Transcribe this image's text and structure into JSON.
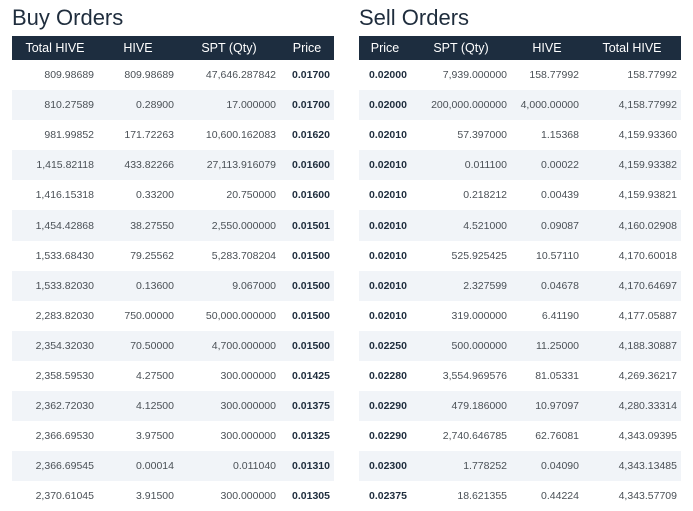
{
  "buy": {
    "title": "Buy Orders",
    "headers": [
      "Total HIVE",
      "HIVE",
      "SPT (Qty)",
      "Price"
    ],
    "rows": [
      [
        "809.98689",
        "809.98689",
        "47,646.287842",
        "0.01700"
      ],
      [
        "810.27589",
        "0.28900",
        "17.000000",
        "0.01700"
      ],
      [
        "981.99852",
        "171.72263",
        "10,600.162083",
        "0.01620"
      ],
      [
        "1,415.82118",
        "433.82266",
        "27,113.916079",
        "0.01600"
      ],
      [
        "1,416.15318",
        "0.33200",
        "20.750000",
        "0.01600"
      ],
      [
        "1,454.42868",
        "38.27550",
        "2,550.000000",
        "0.01501"
      ],
      [
        "1,533.68430",
        "79.25562",
        "5,283.708204",
        "0.01500"
      ],
      [
        "1,533.82030",
        "0.13600",
        "9.067000",
        "0.01500"
      ],
      [
        "2,283.82030",
        "750.00000",
        "50,000.000000",
        "0.01500"
      ],
      [
        "2,354.32030",
        "70.50000",
        "4,700.000000",
        "0.01500"
      ],
      [
        "2,358.59530",
        "4.27500",
        "300.000000",
        "0.01425"
      ],
      [
        "2,362.72030",
        "4.12500",
        "300.000000",
        "0.01375"
      ],
      [
        "2,366.69530",
        "3.97500",
        "300.000000",
        "0.01325"
      ],
      [
        "2,366.69545",
        "0.00014",
        "0.011040",
        "0.01310"
      ],
      [
        "2,370.61045",
        "3.91500",
        "300.000000",
        "0.01305"
      ]
    ]
  },
  "sell": {
    "title": "Sell Orders",
    "headers": [
      "Price",
      "SPT (Qty)",
      "HIVE",
      "Total HIVE"
    ],
    "rows": [
      [
        "0.02000",
        "7,939.000000",
        "158.77992",
        "158.77992"
      ],
      [
        "0.02000",
        "200,000.000000",
        "4,000.00000",
        "4,158.77992"
      ],
      [
        "0.02010",
        "57.397000",
        "1.15368",
        "4,159.93360"
      ],
      [
        "0.02010",
        "0.011100",
        "0.00022",
        "4,159.93382"
      ],
      [
        "0.02010",
        "0.218212",
        "0.00439",
        "4,159.93821"
      ],
      [
        "0.02010",
        "4.521000",
        "0.09087",
        "4,160.02908"
      ],
      [
        "0.02010",
        "525.925425",
        "10.57110",
        "4,170.60018"
      ],
      [
        "0.02010",
        "2.327599",
        "0.04678",
        "4,170.64697"
      ],
      [
        "0.02010",
        "319.000000",
        "6.41190",
        "4,177.05887"
      ],
      [
        "0.02250",
        "500.000000",
        "11.25000",
        "4,188.30887"
      ],
      [
        "0.02280",
        "3,554.969576",
        "81.05331",
        "4,269.36217"
      ],
      [
        "0.02290",
        "479.186000",
        "10.97097",
        "4,280.33314"
      ],
      [
        "0.02290",
        "2,740.646785",
        "62.76081",
        "4,343.09395"
      ],
      [
        "0.02300",
        "1.778252",
        "0.04090",
        "4,343.13485"
      ],
      [
        "0.02375",
        "18.621355",
        "0.44224",
        "4,343.57709"
      ]
    ]
  }
}
